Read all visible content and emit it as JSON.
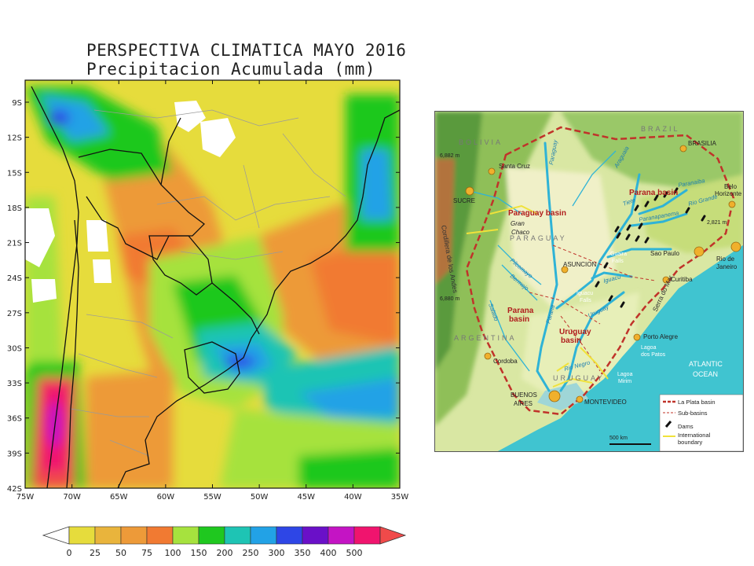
{
  "slide": {
    "title_line1": "PERSPECTIVA CLIMATICA MAYO 2016",
    "title_line2": "Precipitacion Acumulada (mm)"
  },
  "precip_map": {
    "lat_labels": [
      "9S",
      "12S",
      "15S",
      "18S",
      "21S",
      "24S",
      "27S",
      "30S",
      "33S",
      "36S",
      "39S",
      "42S"
    ],
    "lon_labels": [
      "75W",
      "70W",
      "65W",
      "60W",
      "55W",
      "50W",
      "45W",
      "40W",
      "35W"
    ],
    "colorbar": {
      "ticks": [
        "0",
        "25",
        "50",
        "75",
        "100",
        "150",
        "200",
        "250",
        "300",
        "350",
        "400",
        "500"
      ],
      "colors": [
        "#e6dc3c",
        "#e9b43c",
        "#ed9a39",
        "#f17a32",
        "#a6e23e",
        "#1fc81f",
        "#1ec4b4",
        "#22a2e6",
        "#2e46e6",
        "#6a10c8",
        "#c414c4",
        "#f0146e",
        "#f04a4a"
      ]
    }
  },
  "basin_map": {
    "countries": [
      "BOLIVIA",
      "BRAZIL",
      "PARAGUAY",
      "ARGENTINA",
      "URUGUAY"
    ],
    "basins": [
      "Paraguay basin",
      "Parana basin",
      "Parana basin",
      "Uruguay basin"
    ],
    "cities": [
      "Santa Cruz",
      "SUCRE",
      "BRASILIA",
      "Belo Horizonte",
      "Sao Paulo",
      "Rio de Janeiro",
      "Curitiba",
      "ASUNCION",
      "Porto Alegre",
      "Cordoba",
      "BUENOS AIRES",
      "MONTEVIDEO"
    ],
    "rivers": [
      "Paraguay",
      "Araguaia",
      "Paranaiba",
      "Rio Grande",
      "Tiete",
      "Paranapanema",
      "Pilcomayo",
      "Bermejo",
      "Salado",
      "Parana",
      "Uruguay",
      "Iguacu",
      "Rio Negro"
    ],
    "features": [
      "Gran Chaco",
      "Cordillera de los Andes",
      "Serra do Mar",
      "Guaira Falls",
      "Iguacu Falls",
      "Lagoa dos Patos",
      "Lagoa Mirim"
    ],
    "elevations": [
      "6,882 m",
      "6,880 m",
      "2,821 m"
    ],
    "ocean": [
      "ATLANTIC",
      "OCEAN"
    ],
    "scale": "500 km",
    "legend": [
      "La Plata basin",
      "Sub-basins",
      "Dams",
      "International boundary"
    ]
  }
}
